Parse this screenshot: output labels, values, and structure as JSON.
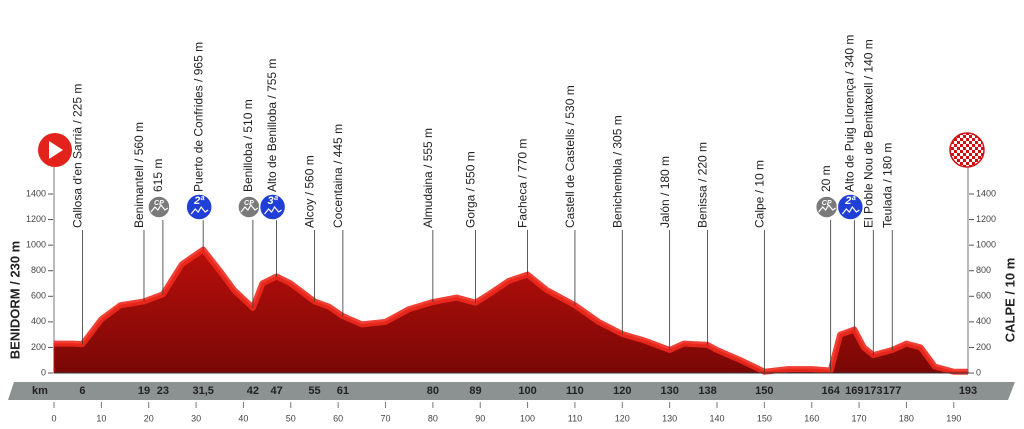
{
  "chart_data": {
    "type": "area",
    "start_label": "BENIDORM / 230 m",
    "finish_label": "CALPE / 10 m",
    "x_unit_label": "km",
    "color": "#c8100c",
    "top_color": "#ee2a1e",
    "x": [
      0,
      4,
      6,
      10,
      14,
      19,
      23,
      27,
      31.5,
      35,
      38,
      42,
      44,
      47,
      50,
      55,
      58,
      61,
      65,
      70,
      75,
      80,
      85,
      89,
      92,
      96,
      100,
      104,
      110,
      115,
      120,
      125,
      130,
      133,
      138,
      140,
      145,
      150,
      155,
      160,
      164,
      166,
      169,
      171,
      173,
      177,
      180,
      183,
      186,
      190,
      193
    ],
    "values": [
      230,
      230,
      225,
      420,
      530,
      560,
      615,
      850,
      965,
      800,
      650,
      510,
      700,
      755,
      700,
      560,
      520,
      445,
      380,
      400,
      500,
      555,
      590,
      550,
      620,
      720,
      770,
      650,
      530,
      400,
      305,
      250,
      180,
      230,
      220,
      180,
      100,
      10,
      30,
      30,
      20,
      300,
      340,
      200,
      140,
      180,
      230,
      200,
      50,
      10,
      10
    ],
    "xlim": [
      0,
      193
    ],
    "ylim": [
      0,
      1400
    ],
    "xticks": [
      0,
      10,
      20,
      30,
      40,
      50,
      60,
      70,
      80,
      90,
      100,
      110,
      120,
      130,
      140,
      150,
      160,
      170,
      180,
      190
    ],
    "yticks": [
      0,
      200,
      400,
      600,
      800,
      1000,
      1200,
      1400
    ],
    "waypoints": [
      {
        "km": 6,
        "label": "Callosa d'en Sarrià / 225 m"
      },
      {
        "km": 19,
        "label": "Benimantell / 560 m"
      },
      {
        "km": 23,
        "label": "615 m",
        "badge": "CP",
        "badge_color": "#7a7a7a"
      },
      {
        "km": {
          "value": 31.5,
          "label": "31,5"
        },
        "label": "Puerto de Confrides / 965 m",
        "badge": "2ª",
        "badge_color": "#1f3fd6"
      },
      {
        "km": 42,
        "label": "Benilloba / 510 m",
        "badge": "CP",
        "badge_color": "#7a7a7a"
      },
      {
        "km": 47,
        "label": "Alto de Benilloba / 755 m",
        "badge": "3ª",
        "badge_color": "#1f3fd6"
      },
      {
        "km": 55,
        "label": "Alcoy / 560 m"
      },
      {
        "km": 61,
        "label": "Cocentaina / 445 m"
      },
      {
        "km": 80,
        "label": "Almudaina / 555 m"
      },
      {
        "km": 89,
        "label": "Gorga / 550 m"
      },
      {
        "km": 100,
        "label": "Facheca / 770 m"
      },
      {
        "km": 110,
        "label": "Castell de Castells / 530 m"
      },
      {
        "km": 120,
        "label": "Benichembla / 305 m"
      },
      {
        "km": 130,
        "label": "Jalón / 180 m"
      },
      {
        "km": 138,
        "label": "Benissa / 220 m"
      },
      {
        "km": 150,
        "label": "Calpe / 10 m"
      },
      {
        "km": 164,
        "label": "20 m",
        "badge": "CP",
        "badge_color": "#7a7a7a"
      },
      {
        "km": 169,
        "label": "Alto de Puig Llorença / 340 m",
        "badge": "2ª",
        "badge_color": "#1f3fd6"
      },
      {
        "km": 173,
        "label": "El Poble Nou de Benitatxell / 140 m"
      },
      {
        "km": 177,
        "label": "Teulada / 180 m"
      },
      {
        "km": 193
      }
    ]
  }
}
